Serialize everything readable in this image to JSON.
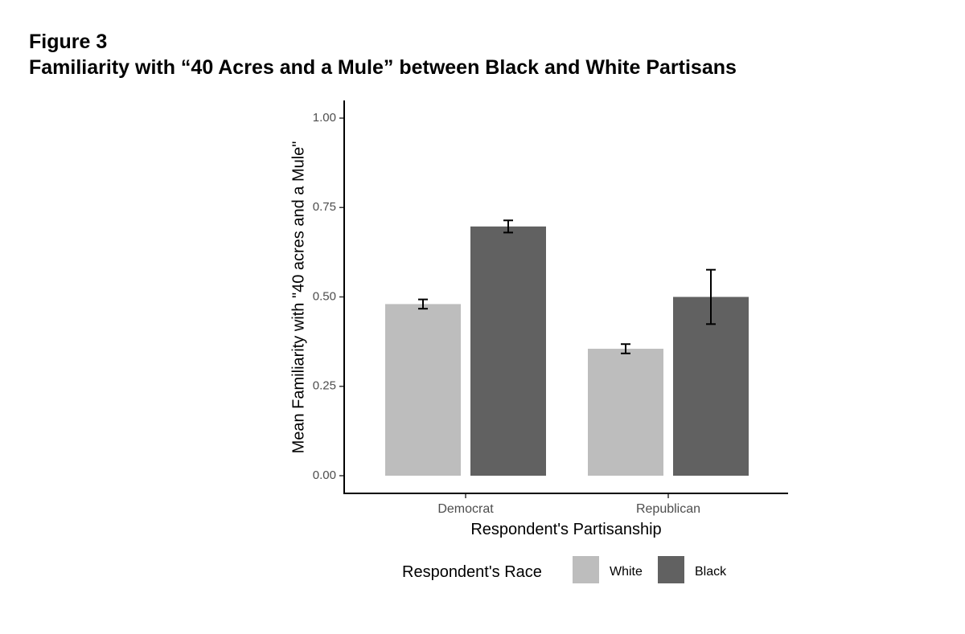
{
  "figure": {
    "label": "Figure 3",
    "title": "Familiarity with “40 Acres and a Mule” between Black and White Partisans"
  },
  "chart_data": {
    "type": "bar",
    "categories": [
      "Democrat",
      "Republican"
    ],
    "series": [
      {
        "name": "White",
        "color": "#bdbdbd",
        "values": [
          0.48,
          0.355
        ],
        "error_low": [
          0.467,
          0.342
        ],
        "error_high": [
          0.493,
          0.368
        ]
      },
      {
        "name": "Black",
        "color": "#616161",
        "values": [
          0.697,
          0.5
        ],
        "error_low": [
          0.68,
          0.424
        ],
        "error_high": [
          0.714,
          0.576
        ]
      }
    ],
    "xlabel": "Respondent's Partisanship",
    "ylabel": "Mean Familiarity with \"40 acres and a Mule\"",
    "ylim": [
      0,
      1.0
    ],
    "yticks": [
      0.0,
      0.25,
      0.5,
      0.75,
      1.0
    ],
    "ytick_labels": [
      "0.00",
      "0.25",
      "0.50",
      "0.75",
      "1.00"
    ],
    "legend": {
      "title": "Respondent's Race",
      "entries": [
        "White",
        "Black"
      ],
      "position": "bottom"
    },
    "grid": false
  }
}
